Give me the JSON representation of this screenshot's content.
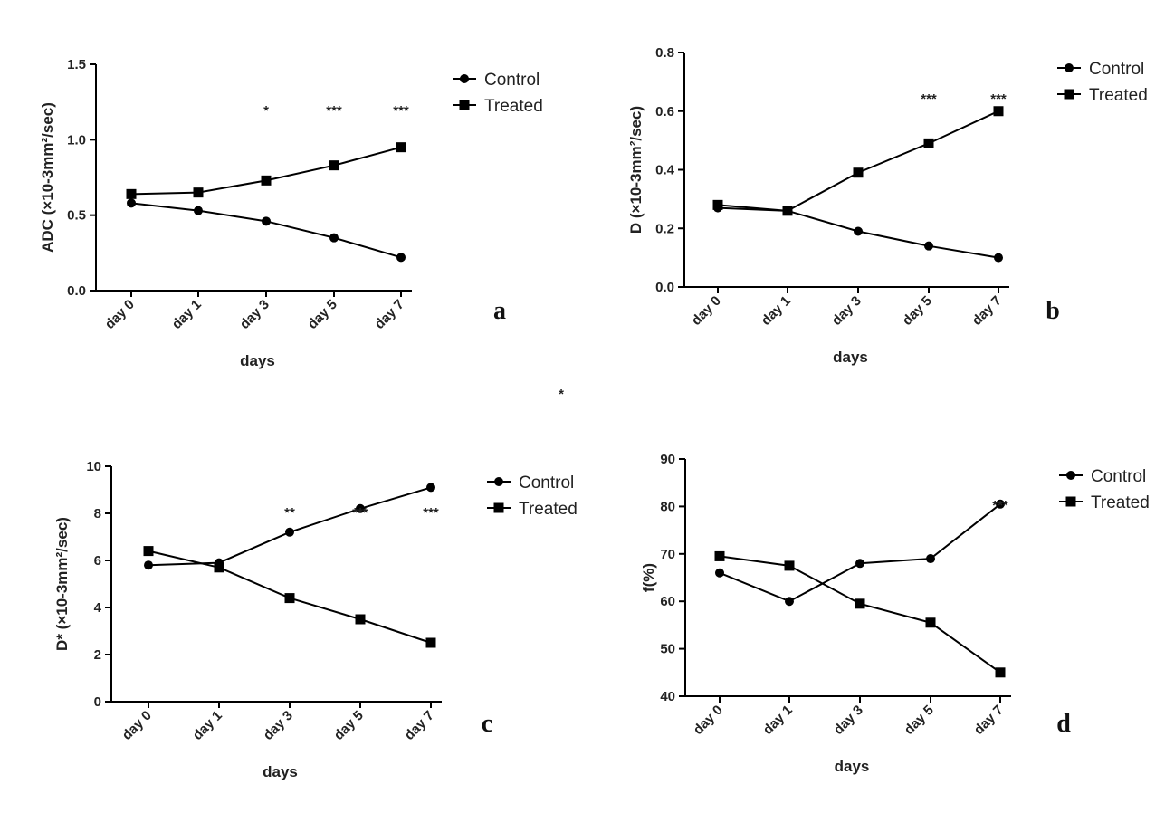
{
  "figure_note": "*",
  "chart_data": [
    {
      "type": "line",
      "panel": "a",
      "categories": [
        "day 0",
        "day 1",
        "day 3",
        "day 5",
        "day 7"
      ],
      "xlabel": "days",
      "ylabel": "ADC (×10-3mm²/sec)",
      "ylim": [
        0,
        1.5
      ],
      "yticks": [
        "0.0",
        "0.5",
        "1.0",
        "1.5"
      ],
      "series": [
        {
          "name": "Control",
          "marker": "circle",
          "values": [
            0.58,
            0.53,
            0.46,
            0.35,
            0.22
          ]
        },
        {
          "name": "Treated",
          "marker": "square",
          "values": [
            0.64,
            0.65,
            0.73,
            0.83,
            0.95
          ]
        }
      ],
      "significance": [
        "",
        "",
        "*",
        "***",
        "***"
      ],
      "legend": "top-right"
    },
    {
      "type": "line",
      "panel": "b",
      "categories": [
        "day 0",
        "day 1",
        "day 3",
        "day 5",
        "day 7"
      ],
      "xlabel": "days",
      "ylabel": "D (×10-3mm²/sec)",
      "ylim": [
        0,
        0.8
      ],
      "yticks": [
        "0.0",
        "0.2",
        "0.4",
        "0.6",
        "0.8"
      ],
      "series": [
        {
          "name": "Control",
          "marker": "circle",
          "values": [
            0.27,
            0.26,
            0.19,
            0.14,
            0.1
          ]
        },
        {
          "name": "Treated",
          "marker": "square",
          "values": [
            0.28,
            0.26,
            0.39,
            0.49,
            0.6
          ]
        }
      ],
      "significance": [
        "",
        "",
        "",
        "***",
        "***"
      ],
      "legend": "top-right"
    },
    {
      "type": "line",
      "panel": "c",
      "categories": [
        "day 0",
        "day 1",
        "day 3",
        "day 5",
        "day 7"
      ],
      "xlabel": "days",
      "ylabel": "D* (×10-3mm²/sec)",
      "ylim": [
        0,
        10
      ],
      "yticks": [
        "0",
        "2",
        "4",
        "6",
        "8",
        "10"
      ],
      "series": [
        {
          "name": "Control",
          "marker": "circle",
          "values": [
            5.8,
            5.9,
            7.2,
            8.2,
            9.1
          ]
        },
        {
          "name": "Treated",
          "marker": "square",
          "values": [
            6.4,
            5.7,
            4.4,
            3.5,
            2.5
          ]
        }
      ],
      "significance": [
        "",
        "",
        "**",
        "***",
        "***"
      ],
      "legend": "top-right"
    },
    {
      "type": "line",
      "panel": "d",
      "categories": [
        "day 0",
        "day 1",
        "day 3",
        "day 5",
        "day 7"
      ],
      "xlabel": "days",
      "ylabel": "f(%)",
      "ylim": [
        40,
        90
      ],
      "yticks": [
        "40",
        "50",
        "60",
        "70",
        "80",
        "90"
      ],
      "series": [
        {
          "name": "Control",
          "marker": "circle",
          "values": [
            66,
            60,
            68,
            69,
            80.5
          ]
        },
        {
          "name": "Treated",
          "marker": "square",
          "values": [
            69.5,
            67.5,
            59.5,
            55.5,
            45
          ]
        }
      ],
      "significance": [
        "",
        "",
        "",
        "",
        "***"
      ],
      "legend": "top-right"
    }
  ]
}
